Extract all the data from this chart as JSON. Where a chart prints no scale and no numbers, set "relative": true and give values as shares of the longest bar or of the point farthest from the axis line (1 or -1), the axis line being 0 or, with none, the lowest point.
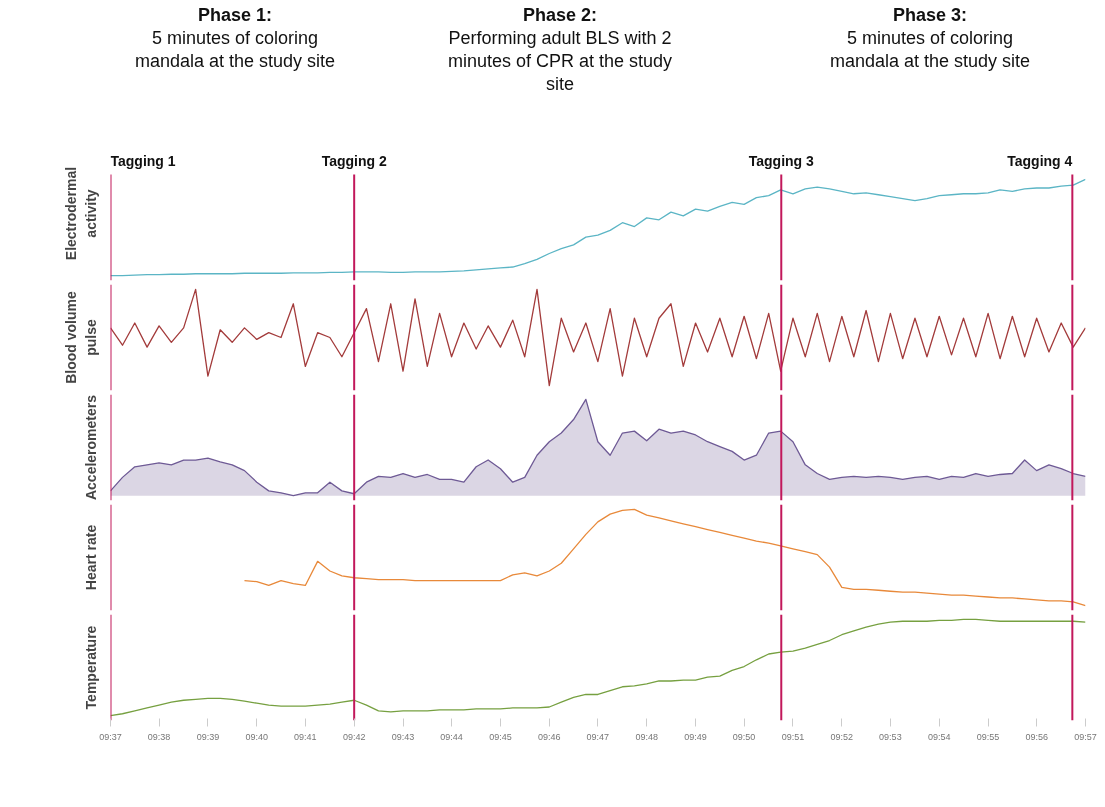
{
  "chart_data": [
    {
      "type": "line",
      "ylabel": "Electrodermal activity",
      "relative": true,
      "tick_labels": false,
      "grid": false,
      "annotations": [
        "Phase 1:",
        "5 minutes of coloring mandala at the study site",
        "Phase 2:",
        "Performing adult BLS with 2 minutes of CPR at the study site",
        "Phase 3:",
        "5 minutes of coloring mandala at the study site"
      ],
      "xlim": [
        9.6167,
        9.95
      ],
      "ref_lines": [
        {
          "axis": "x",
          "value": 9.6167,
          "label": "Tagging 1",
          "color": "#c2185b"
        },
        {
          "axis": "x",
          "value": 9.7,
          "label": "Tagging 2",
          "color": "#c2185b"
        },
        {
          "axis": "x",
          "value": 9.846,
          "label": "Tagging 3",
          "color": "#c2185b"
        },
        {
          "axis": "x",
          "value": 9.9455,
          "label": "Tagging 4",
          "color": "#c2185b"
        }
      ],
      "x": [
        9.6167,
        9.6208,
        9.625,
        9.6292,
        9.6333,
        9.6375,
        9.6417,
        9.6458,
        9.65,
        9.6542,
        9.6583,
        9.6625,
        9.6667,
        9.6708,
        9.675,
        9.6792,
        9.6833,
        9.6875,
        9.6917,
        9.6958,
        9.7,
        9.7042,
        9.7083,
        9.7125,
        9.7167,
        9.7208,
        9.725,
        9.7292,
        9.7333,
        9.7375,
        9.7417,
        9.7458,
        9.75,
        9.7542,
        9.7583,
        9.7625,
        9.7667,
        9.7708,
        9.775,
        9.7792,
        9.7833,
        9.7875,
        9.7917,
        9.7958,
        9.8,
        9.8042,
        9.8083,
        9.8125,
        9.8167,
        9.8208,
        9.825,
        9.8292,
        9.8333,
        9.8375,
        9.8417,
        9.8458,
        9.85,
        9.8542,
        9.8583,
        9.8625,
        9.8667,
        9.8708,
        9.875,
        9.8792,
        9.8833,
        9.8875,
        9.8917,
        9.8958,
        9.9,
        9.9042,
        9.9083,
        9.9125,
        9.9167,
        9.9208,
        9.925,
        9.9292,
        9.9333,
        9.9375,
        9.9417,
        9.9458,
        9.95
      ],
      "series": [
        {
          "color": "#5bb5c5",
          "values": [
            0,
            0,
            0.005,
            0.01,
            0.01,
            0.015,
            0.015,
            0.02,
            0.02,
            0.02,
            0.02,
            0.025,
            0.025,
            0.025,
            0.025,
            0.03,
            0.03,
            0.03,
            0.035,
            0.035,
            0.04,
            0.04,
            0.04,
            0.035,
            0.035,
            0.04,
            0.04,
            0.04,
            0.045,
            0.05,
            0.06,
            0.07,
            0.08,
            0.09,
            0.125,
            0.17,
            0.23,
            0.28,
            0.32,
            0.4,
            0.42,
            0.47,
            0.55,
            0.51,
            0.6,
            0.58,
            0.66,
            0.62,
            0.69,
            0.67,
            0.72,
            0.76,
            0.74,
            0.81,
            0.83,
            0.89,
            0.85,
            0.9,
            0.92,
            0.9,
            0.875,
            0.85,
            0.86,
            0.84,
            0.82,
            0.8,
            0.78,
            0.8,
            0.83,
            0.84,
            0.85,
            0.85,
            0.86,
            0.89,
            0.875,
            0.9,
            0.91,
            0.91,
            0.93,
            0.94,
            1
          ]
        }
      ]
    },
    {
      "type": "line",
      "ylabel": "Blood volume pulse",
      "relative": true,
      "tick_labels": false,
      "grid": false,
      "xlim": [
        9.6167,
        9.95
      ],
      "ref_lines": [
        {
          "axis": "x",
          "value": 9.6167,
          "color": "#c2185b"
        },
        {
          "axis": "x",
          "value": 9.7,
          "color": "#c2185b"
        },
        {
          "axis": "x",
          "value": 9.846,
          "color": "#c2185b"
        },
        {
          "axis": "x",
          "value": 9.9455,
          "color": "#c2185b"
        }
      ],
      "x": [
        9.6167,
        9.6208,
        9.625,
        9.6292,
        9.6333,
        9.6375,
        9.6417,
        9.6458,
        9.65,
        9.6542,
        9.6583,
        9.6625,
        9.6667,
        9.6708,
        9.675,
        9.6792,
        9.6833,
        9.6875,
        9.6917,
        9.6958,
        9.7,
        9.7042,
        9.7083,
        9.7125,
        9.7167,
        9.7208,
        9.725,
        9.7292,
        9.7333,
        9.7375,
        9.7417,
        9.7458,
        9.75,
        9.7542,
        9.7583,
        9.7625,
        9.7667,
        9.7708,
        9.775,
        9.7792,
        9.7833,
        9.7875,
        9.7917,
        9.7958,
        9.8,
        9.8042,
        9.8083,
        9.8125,
        9.8167,
        9.8208,
        9.825,
        9.8292,
        9.8333,
        9.8375,
        9.8417,
        9.8458,
        9.85,
        9.8542,
        9.8583,
        9.8625,
        9.8667,
        9.8708,
        9.875,
        9.8792,
        9.8833,
        9.8875,
        9.8917,
        9.8958,
        9.9,
        9.9042,
        9.9083,
        9.9125,
        9.9167,
        9.9208,
        9.925,
        9.9292,
        9.9333,
        9.9375,
        9.9417,
        9.9458,
        9.95
      ],
      "series": [
        {
          "color": "#a33b3b",
          "values": [
            0.6,
            0.42,
            0.65,
            0.4,
            0.62,
            0.45,
            0.6,
            1.0,
            0.1,
            0.58,
            0.45,
            0.6,
            0.48,
            0.55,
            0.5,
            0.85,
            0.2,
            0.55,
            0.5,
            0.3,
            0.55,
            0.8,
            0.25,
            0.85,
            0.15,
            0.9,
            0.2,
            0.75,
            0.3,
            0.65,
            0.38,
            0.62,
            0.4,
            0.68,
            0.3,
            1.0,
            0,
            0.7,
            0.35,
            0.65,
            0.25,
            0.8,
            0.1,
            0.7,
            0.3,
            0.7,
            0.85,
            0.2,
            0.65,
            0.35,
            0.7,
            0.3,
            0.72,
            0.28,
            0.75,
            0.15,
            0.7,
            0.3,
            0.75,
            0.25,
            0.72,
            0.3,
            0.78,
            0.25,
            0.75,
            0.28,
            0.7,
            0.3,
            0.72,
            0.32,
            0.7,
            0.3,
            0.75,
            0.28,
            0.72,
            0.3,
            0.7,
            0.35,
            0.65,
            0.4,
            0.6
          ]
        }
      ]
    },
    {
      "type": "area",
      "ylabel": "Accelerometers",
      "relative": true,
      "tick_labels": false,
      "grid": false,
      "xlim": [
        9.6167,
        9.95
      ],
      "ref_lines": [
        {
          "axis": "x",
          "value": 9.6167,
          "color": "#c2185b"
        },
        {
          "axis": "x",
          "value": 9.7,
          "color": "#c2185b"
        },
        {
          "axis": "x",
          "value": 9.846,
          "color": "#c2185b"
        },
        {
          "axis": "x",
          "value": 9.9455,
          "color": "#c2185b"
        }
      ],
      "x": [
        9.6167,
        9.6208,
        9.625,
        9.6292,
        9.6333,
        9.6375,
        9.6417,
        9.6458,
        9.65,
        9.6542,
        9.6583,
        9.6625,
        9.6667,
        9.6708,
        9.675,
        9.6792,
        9.6833,
        9.6875,
        9.6917,
        9.6958,
        9.7,
        9.7042,
        9.7083,
        9.7125,
        9.7167,
        9.7208,
        9.725,
        9.7292,
        9.7333,
        9.7375,
        9.7417,
        9.7458,
        9.75,
        9.7542,
        9.7583,
        9.7625,
        9.7667,
        9.7708,
        9.775,
        9.7792,
        9.7833,
        9.7875,
        9.7917,
        9.7958,
        9.8,
        9.8042,
        9.8083,
        9.8125,
        9.8167,
        9.8208,
        9.825,
        9.8292,
        9.8333,
        9.8375,
        9.8417,
        9.8458,
        9.85,
        9.8542,
        9.8583,
        9.8625,
        9.8667,
        9.8708,
        9.875,
        9.8792,
        9.8833,
        9.8875,
        9.8917,
        9.8958,
        9.9,
        9.9042,
        9.9083,
        9.9125,
        9.9167,
        9.9208,
        9.925,
        9.9292,
        9.9333,
        9.9375,
        9.9417,
        9.9458,
        9.95
      ],
      "series": [
        {
          "color": "#6e5a95",
          "values": [
            0.05,
            0.19,
            0.3,
            0.32,
            0.34,
            0.32,
            0.37,
            0.37,
            0.39,
            0.35,
            0.32,
            0.26,
            0.14,
            0.05,
            0.03,
            0,
            0.03,
            0.03,
            0.14,
            0.05,
            0.02,
            0.14,
            0.2,
            0.19,
            0.23,
            0.19,
            0.22,
            0.17,
            0.17,
            0.14,
            0.3,
            0.37,
            0.28,
            0.14,
            0.19,
            0.42,
            0.56,
            0.65,
            0.79,
            1.0,
            0.56,
            0.42,
            0.65,
            0.67,
            0.57,
            0.69,
            0.65,
            0.67,
            0.63,
            0.56,
            0.51,
            0.46,
            0.37,
            0.42,
            0.65,
            0.67,
            0.56,
            0.32,
            0.23,
            0.17,
            0.19,
            0.2,
            0.19,
            0.2,
            0.19,
            0.17,
            0.19,
            0.2,
            0.17,
            0.2,
            0.19,
            0.23,
            0.2,
            0.22,
            0.23,
            0.37,
            0.26,
            0.32,
            0.28,
            0.23,
            0.2
          ]
        }
      ]
    },
    {
      "type": "line",
      "ylabel": "Heart rate",
      "relative": true,
      "tick_labels": false,
      "grid": false,
      "xlim": [
        9.6167,
        9.95
      ],
      "ref_lines": [
        {
          "axis": "x",
          "value": 9.6167,
          "color": "#c2185b"
        },
        {
          "axis": "x",
          "value": 9.7,
          "color": "#c2185b"
        },
        {
          "axis": "x",
          "value": 9.846,
          "color": "#c2185b"
        },
        {
          "axis": "x",
          "value": 9.9455,
          "color": "#c2185b"
        }
      ],
      "x": [
        9.6625,
        9.6667,
        9.6708,
        9.675,
        9.6792,
        9.6833,
        9.6875,
        9.6917,
        9.6958,
        9.7,
        9.7042,
        9.7083,
        9.7125,
        9.7167,
        9.7208,
        9.725,
        9.7292,
        9.7333,
        9.7375,
        9.7417,
        9.7458,
        9.75,
        9.7542,
        9.7583,
        9.7625,
        9.7667,
        9.7708,
        9.775,
        9.7792,
        9.7833,
        9.7875,
        9.7917,
        9.7958,
        9.8,
        9.8042,
        9.8083,
        9.8125,
        9.8167,
        9.8208,
        9.825,
        9.8292,
        9.8333,
        9.8375,
        9.8417,
        9.8458,
        9.85,
        9.8542,
        9.8583,
        9.8625,
        9.8667,
        9.8708,
        9.875,
        9.8792,
        9.8833,
        9.8875,
        9.8917,
        9.8958,
        9.9,
        9.9042,
        9.9083,
        9.9125,
        9.9167,
        9.9208,
        9.925,
        9.9292,
        9.9333,
        9.9375,
        9.9417,
        9.9458,
        9.95
      ],
      "series": [
        {
          "color": "#e8893a",
          "values": [
            0.26,
            0.25,
            0.21,
            0.26,
            0.23,
            0.21,
            0.46,
            0.36,
            0.31,
            0.29,
            0.28,
            0.27,
            0.27,
            0.27,
            0.26,
            0.26,
            0.26,
            0.26,
            0.26,
            0.26,
            0.26,
            0.26,
            0.32,
            0.34,
            0.31,
            0.36,
            0.44,
            0.59,
            0.74,
            0.87,
            0.95,
            0.99,
            1.0,
            0.94,
            0.91,
            0.88,
            0.85,
            0.82,
            0.79,
            0.76,
            0.73,
            0.7,
            0.67,
            0.65,
            0.62,
            0.59,
            0.56,
            0.53,
            0.4,
            0.19,
            0.17,
            0.17,
            0.16,
            0.15,
            0.14,
            0.14,
            0.13,
            0.12,
            0.11,
            0.11,
            0.1,
            0.09,
            0.08,
            0.08,
            0.07,
            0.06,
            0.05,
            0.05,
            0.04,
            0
          ]
        }
      ]
    },
    {
      "type": "line",
      "ylabel": "Temperature",
      "relative": true,
      "tick_labels": "x",
      "grid": false,
      "xlim": [
        9.6167,
        9.95
      ],
      "xticks": [
        {
          "value": 9.6167,
          "label": "09:37"
        },
        {
          "value": 9.6333,
          "label": "09:38"
        },
        {
          "value": 9.65,
          "label": "09:39"
        },
        {
          "value": 9.6667,
          "label": "09:40"
        },
        {
          "value": 9.6833,
          "label": "09:41"
        },
        {
          "value": 9.7,
          "label": "09:42"
        },
        {
          "value": 9.7167,
          "label": "09:43"
        },
        {
          "value": 9.7333,
          "label": "09:44"
        },
        {
          "value": 9.75,
          "label": "09:45"
        },
        {
          "value": 9.7667,
          "label": "09:46"
        },
        {
          "value": 9.7833,
          "label": "09:47"
        },
        {
          "value": 9.8,
          "label": "09:48"
        },
        {
          "value": 9.8167,
          "label": "09:49"
        },
        {
          "value": 9.8333,
          "label": "09:50"
        },
        {
          "value": 9.85,
          "label": "09:51"
        },
        {
          "value": 9.8667,
          "label": "09:52"
        },
        {
          "value": 9.8833,
          "label": "09:53"
        },
        {
          "value": 9.9,
          "label": "09:54"
        },
        {
          "value": 9.9167,
          "label": "09:55"
        },
        {
          "value": 9.9333,
          "label": "09:56"
        },
        {
          "value": 9.95,
          "label": "09:57"
        }
      ],
      "ref_lines": [
        {
          "axis": "x",
          "value": 9.6167,
          "color": "#c2185b"
        },
        {
          "axis": "x",
          "value": 9.7,
          "color": "#c2185b"
        },
        {
          "axis": "x",
          "value": 9.846,
          "color": "#c2185b"
        },
        {
          "axis": "x",
          "value": 9.9455,
          "color": "#c2185b"
        }
      ],
      "x": [
        9.6167,
        9.6208,
        9.625,
        9.6292,
        9.6333,
        9.6375,
        9.6417,
        9.6458,
        9.65,
        9.6542,
        9.6583,
        9.6625,
        9.6667,
        9.6708,
        9.675,
        9.6792,
        9.6833,
        9.6875,
        9.6917,
        9.6958,
        9.7,
        9.7042,
        9.7083,
        9.7125,
        9.7167,
        9.7208,
        9.725,
        9.7292,
        9.7333,
        9.7375,
        9.7417,
        9.7458,
        9.75,
        9.7542,
        9.7583,
        9.7625,
        9.7667,
        9.7708,
        9.775,
        9.7792,
        9.7833,
        9.7875,
        9.7917,
        9.7958,
        9.8,
        9.8042,
        9.8083,
        9.8125,
        9.8167,
        9.8208,
        9.825,
        9.8292,
        9.8333,
        9.8375,
        9.8417,
        9.8458,
        9.85,
        9.8542,
        9.8583,
        9.8625,
        9.8667,
        9.8708,
        9.875,
        9.8792,
        9.8833,
        9.8875,
        9.8917,
        9.8958,
        9.9,
        9.9042,
        9.9083,
        9.9125,
        9.9167,
        9.9208,
        9.925,
        9.9292,
        9.9333,
        9.9375,
        9.9417,
        9.9458,
        9.95
      ],
      "series": [
        {
          "color": "#76a040",
          "values": [
            0,
            0.02,
            0.05,
            0.08,
            0.11,
            0.14,
            0.16,
            0.17,
            0.18,
            0.18,
            0.17,
            0.15,
            0.13,
            0.11,
            0.1,
            0.1,
            0.1,
            0.11,
            0.12,
            0.14,
            0.16,
            0.11,
            0.05,
            0.04,
            0.05,
            0.05,
            0.05,
            0.06,
            0.06,
            0.06,
            0.07,
            0.07,
            0.07,
            0.08,
            0.08,
            0.08,
            0.09,
            0.14,
            0.19,
            0.22,
            0.22,
            0.26,
            0.3,
            0.31,
            0.33,
            0.36,
            0.36,
            0.37,
            0.37,
            0.4,
            0.41,
            0.47,
            0.51,
            0.58,
            0.64,
            0.66,
            0.67,
            0.7,
            0.74,
            0.78,
            0.84,
            0.88,
            0.92,
            0.95,
            0.97,
            0.98,
            0.98,
            0.98,
            0.99,
            0.99,
            1.0,
            1.0,
            0.99,
            0.98,
            0.98,
            0.98,
            0.98,
            0.98,
            0.98,
            0.98,
            0.97
          ]
        }
      ]
    }
  ]
}
